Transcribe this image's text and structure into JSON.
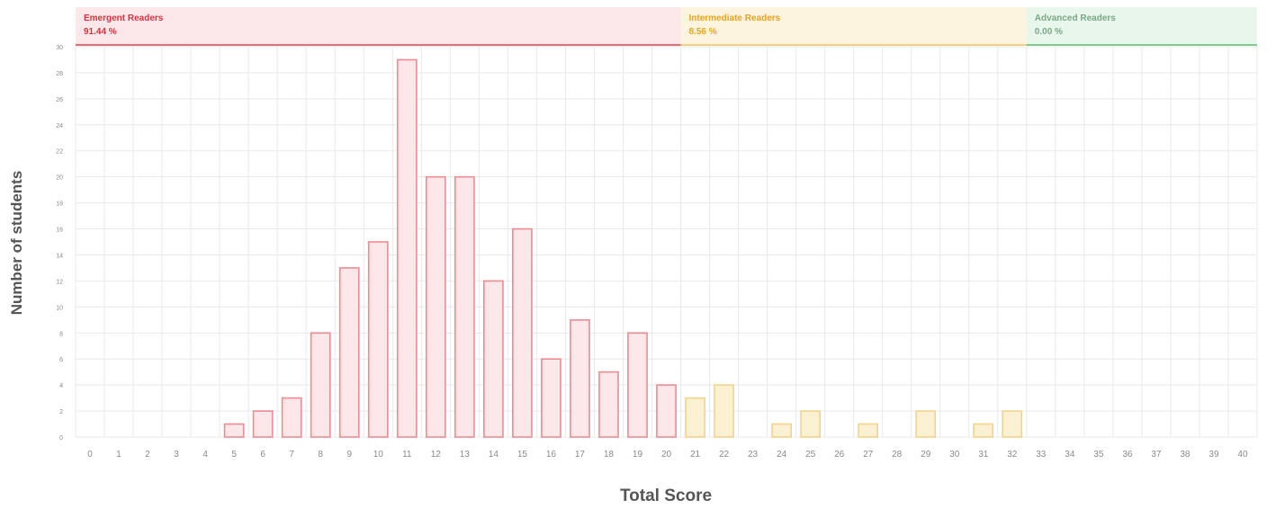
{
  "chart_data": {
    "type": "bar",
    "xlabel": "Total Score",
    "ylabel": "Number of students",
    "ylim": [
      0,
      30
    ],
    "y_tick_step": 2,
    "grid": true,
    "categories": [
      "0",
      "1",
      "2",
      "3",
      "4",
      "5",
      "6",
      "7",
      "8",
      "9",
      "10",
      "11",
      "12",
      "13",
      "14",
      "15",
      "16",
      "17",
      "18",
      "19",
      "20",
      "21",
      "22",
      "23",
      "24",
      "25",
      "26",
      "27",
      "28",
      "29",
      "30",
      "31",
      "32",
      "33",
      "34",
      "35",
      "36",
      "37",
      "38",
      "39",
      "40"
    ],
    "values": [
      0,
      0,
      0,
      0,
      0,
      1,
      2,
      3,
      8,
      13,
      15,
      29,
      20,
      20,
      12,
      16,
      6,
      9,
      5,
      8,
      4,
      3,
      4,
      0,
      1,
      2,
      0,
      1,
      0,
      2,
      0,
      1,
      2,
      0,
      0,
      0,
      0,
      0,
      0,
      0,
      0
    ],
    "bands": [
      {
        "name": "Emergent Readers",
        "percent": "91.44 %",
        "from": 0,
        "to": 20,
        "fill": "#fce8ea",
        "border": "#e96a72",
        "text_color": "#e0303c",
        "bar_fill": "#fde7e9",
        "bar_stroke": "#ef8a92"
      },
      {
        "name": "Intermediate Readers",
        "percent": "8.56 %",
        "from": 21,
        "to": 32,
        "fill": "#fdf4e0",
        "border": "#f3d27a",
        "text_color": "#eba21c",
        "bar_fill": "#fcf0d2",
        "bar_stroke": "#f1d488"
      },
      {
        "name": "Advanced Readers",
        "percent": "0.00 %",
        "from": 33,
        "to": 40,
        "fill": "#e8f6ec",
        "border": "#7ccc92",
        "text_color": "#7aa886",
        "bar_fill": "#e8f6ec",
        "bar_stroke": "#9fd6ad"
      }
    ]
  }
}
